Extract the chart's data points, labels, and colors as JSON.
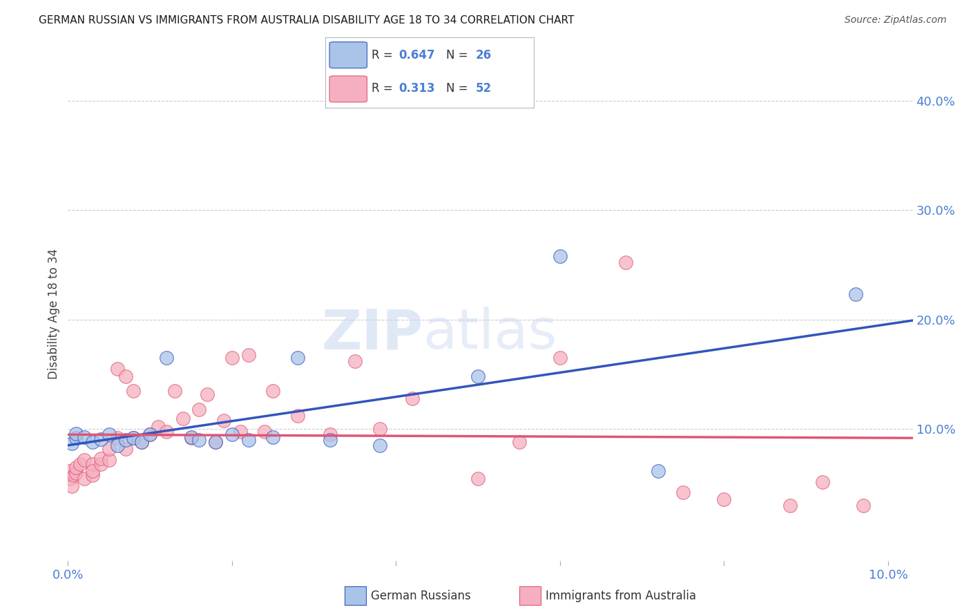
{
  "title": "GERMAN RUSSIAN VS IMMIGRANTS FROM AUSTRALIA DISABILITY AGE 18 TO 34 CORRELATION CHART",
  "source": "Source: ZipAtlas.com",
  "ylabel": "Disability Age 18 to 34",
  "R_blue": 0.647,
  "N_blue": 26,
  "R_pink": 0.313,
  "N_pink": 52,
  "blue_label": "German Russians",
  "pink_label": "Immigrants from Australia",
  "blue_color": "#a8c4e8",
  "pink_color": "#f5afc0",
  "blue_line_color": "#3355bb",
  "pink_line_color": "#e05575",
  "watermark_zip": "ZIP",
  "watermark_atlas": "atlas",
  "xlim": [
    0.0,
    0.103
  ],
  "ylim": [
    -0.02,
    0.43
  ],
  "x_ticks": [
    0.0,
    0.02,
    0.04,
    0.06,
    0.08,
    0.1
  ],
  "x_tick_labels": [
    "0.0%",
    "",
    "",
    "",
    "",
    "10.0%"
  ],
  "y_ticks_right": [
    0.1,
    0.2,
    0.3,
    0.4
  ],
  "y_tick_labels_right": [
    "10.0%",
    "20.0%",
    "30.0%",
    "40.0%"
  ],
  "blue_x": [
    0.0005,
    0.001,
    0.001,
    0.002,
    0.003,
    0.004,
    0.005,
    0.006,
    0.007,
    0.008,
    0.009,
    0.01,
    0.012,
    0.015,
    0.016,
    0.018,
    0.02,
    0.022,
    0.025,
    0.028,
    0.032,
    0.038,
    0.05,
    0.06,
    0.072,
    0.096
  ],
  "blue_y": [
    0.087,
    0.092,
    0.096,
    0.093,
    0.088,
    0.091,
    0.095,
    0.085,
    0.09,
    0.092,
    0.088,
    0.095,
    0.165,
    0.093,
    0.09,
    0.088,
    0.095,
    0.09,
    0.093,
    0.165,
    0.09,
    0.085,
    0.148,
    0.258,
    0.062,
    0.223
  ],
  "pink_x": [
    0.0002,
    0.0003,
    0.0005,
    0.0007,
    0.001,
    0.001,
    0.0015,
    0.002,
    0.002,
    0.003,
    0.003,
    0.003,
    0.004,
    0.004,
    0.005,
    0.005,
    0.006,
    0.006,
    0.007,
    0.007,
    0.008,
    0.008,
    0.009,
    0.01,
    0.011,
    0.012,
    0.013,
    0.014,
    0.015,
    0.016,
    0.017,
    0.018,
    0.019,
    0.02,
    0.021,
    0.022,
    0.024,
    0.025,
    0.028,
    0.032,
    0.035,
    0.038,
    0.042,
    0.05,
    0.055,
    0.06,
    0.068,
    0.075,
    0.08,
    0.088,
    0.092,
    0.097
  ],
  "pink_y": [
    0.062,
    0.055,
    0.048,
    0.058,
    0.06,
    0.065,
    0.068,
    0.055,
    0.072,
    0.058,
    0.068,
    0.062,
    0.068,
    0.073,
    0.072,
    0.082,
    0.155,
    0.092,
    0.082,
    0.148,
    0.092,
    0.135,
    0.088,
    0.095,
    0.102,
    0.098,
    0.135,
    0.11,
    0.092,
    0.118,
    0.132,
    0.088,
    0.108,
    0.165,
    0.098,
    0.168,
    0.098,
    0.135,
    0.112,
    0.095,
    0.162,
    0.1,
    0.128,
    0.055,
    0.088,
    0.165,
    0.252,
    0.042,
    0.036,
    0.03,
    0.052,
    0.03
  ],
  "background_color": "#ffffff",
  "grid_color": "#cccccc",
  "axis_color": "#4a7fd4",
  "tick_color": "#aaaaaa"
}
